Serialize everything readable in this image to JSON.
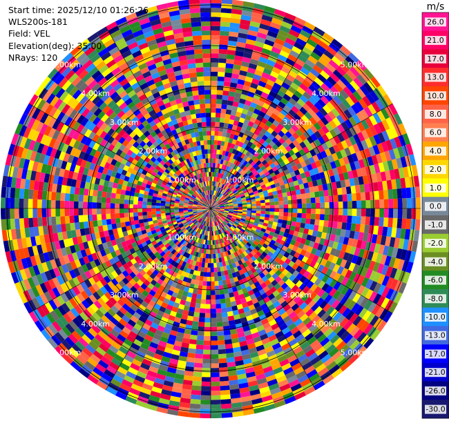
{
  "header": {
    "start_time": "Start time: 2025/12/10 01:26:26",
    "site": "WLS200s-181",
    "field": "Field: VEL",
    "elevation": "Elevation(deg): 35.00",
    "nrays": "NRays: 120"
  },
  "chart_data": {
    "type": "heatmap",
    "projection": "polar-ppi",
    "field": "VEL",
    "elevation_deg": 35.0,
    "n_rays": 120,
    "range_rings_km": [
      1,
      2,
      3,
      4,
      5
    ],
    "range_ring_labels": [
      "1.00km",
      "2.00km",
      "3.00km",
      "4.00km",
      "5.00km"
    ],
    "colorbar": {
      "unit": "m/s",
      "tick_labels": [
        "26.0",
        "21.0",
        "17.0",
        "13.0",
        "10.0",
        "8.0",
        "6.0",
        "4.0",
        "2.0",
        "1.0",
        "0.0",
        "-1.0",
        "-2.0",
        "-4.0",
        "-6.0",
        "-8.0",
        "-10.0",
        "-13.0",
        "-17.0",
        "-21.0",
        "-26.0",
        "-30.0"
      ],
      "colors": [
        "#ff1493",
        "#ff0066",
        "#e8003c",
        "#ff2d2d",
        "#ff4500",
        "#ff6347",
        "#ff7f50",
        "#ffa500",
        "#ffd700",
        "#ffff00",
        "#778899",
        "#696969",
        "#9acd32",
        "#6b8e23",
        "#228b22",
        "#2e8b57",
        "#1e90ff",
        "#4169e1",
        "#0000ff",
        "#0000cd",
        "#000080",
        "#191970"
      ]
    }
  }
}
